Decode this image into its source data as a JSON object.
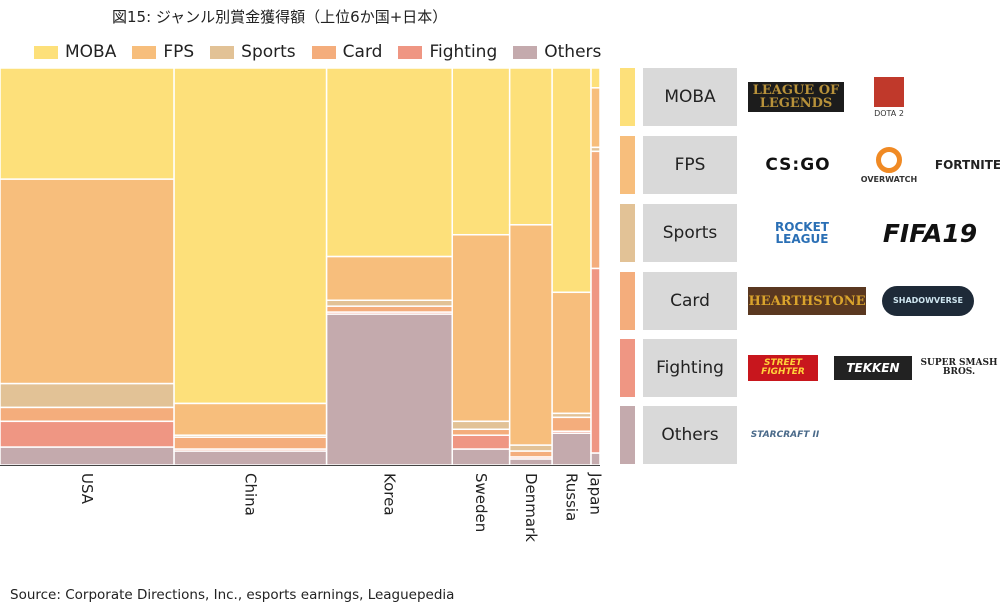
{
  "title": "図15: ジャンル別賞金獲得額（上位6か国+日本）",
  "source": "Source: Corporate Directions, Inc., esports earnings, Leaguepedia",
  "chart_data": {
    "type": "marimekko",
    "genres": [
      "MOBA",
      "FPS",
      "Sports",
      "Card",
      "Fighting",
      "Others"
    ],
    "colors": {
      "MOBA": "#fde07a",
      "FPS": "#f7be7c",
      "Sports": "#e2c296",
      "Card": "#f4ad7c",
      "Fighting": "#ef9683",
      "Others": "#c4aaad"
    },
    "countries": [
      {
        "name": "USA",
        "width_share": 29.1,
        "values": [
          28.0,
          51.5,
          6.0,
          3.5,
          6.5,
          4.5
        ]
      },
      {
        "name": "China",
        "width_share": 25.5,
        "values": [
          84.5,
          8.0,
          0.5,
          3.0,
          0.5,
          3.5
        ]
      },
      {
        "name": "Korea",
        "width_share": 21.0,
        "values": [
          47.5,
          11.0,
          1.5,
          1.5,
          0.5,
          38.0
        ]
      },
      {
        "name": "Sweden",
        "width_share": 9.6,
        "values": [
          42.0,
          47.0,
          2.0,
          1.5,
          3.5,
          4.0
        ]
      },
      {
        "name": "Denmark",
        "width_share": 7.1,
        "values": [
          39.5,
          55.5,
          1.5,
          1.5,
          0.5,
          1.5
        ]
      },
      {
        "name": "Russia",
        "width_share": 6.5,
        "values": [
          56.5,
          30.5,
          1.0,
          3.5,
          0.5,
          8.0
        ]
      },
      {
        "name": "Japan",
        "width_share": 1.5,
        "values": [
          5.0,
          15.0,
          1.0,
          29.5,
          46.5,
          3.0
        ]
      }
    ]
  },
  "legend": [
    {
      "label": "MOBA"
    },
    {
      "label": "FPS"
    },
    {
      "label": "Sports"
    },
    {
      "label": "Card"
    },
    {
      "label": "Fighting"
    },
    {
      "label": "Others"
    }
  ],
  "side_panel": [
    {
      "genre": "MOBA",
      "logos": [
        {
          "name": "league-of-legends-logo",
          "text": "LEAGUE OF LEGENDS"
        },
        {
          "name": "dota2-logo",
          "text": "DOTA 2"
        }
      ]
    },
    {
      "genre": "FPS",
      "logos": [
        {
          "name": "csgo-logo",
          "text": "CS:GO"
        },
        {
          "name": "overwatch-logo",
          "text": "OVERWATCH"
        },
        {
          "name": "fortnite-logo",
          "text": "FORTNITE"
        }
      ]
    },
    {
      "genre": "Sports",
      "logos": [
        {
          "name": "rocket-league-logo",
          "text": "ROCKET LEAGUE"
        },
        {
          "name": "fifa19-logo",
          "text": "FIFA19"
        }
      ]
    },
    {
      "genre": "Card",
      "logos": [
        {
          "name": "hearthstone-logo",
          "text": "HEARTHSTONE"
        },
        {
          "name": "shadowverse-logo",
          "text": "SHADOWVERSE"
        }
      ]
    },
    {
      "genre": "Fighting",
      "logos": [
        {
          "name": "street-fighter-logo",
          "text": "STREET FIGHTER"
        },
        {
          "name": "tekken-logo",
          "text": "TEKKEN"
        },
        {
          "name": "smash-bros-logo",
          "text": "SUPER SMASH BROS."
        }
      ]
    },
    {
      "genre": "Others",
      "logos": [
        {
          "name": "starcraft2-logo",
          "text": "STARCRAFT II"
        }
      ]
    }
  ]
}
